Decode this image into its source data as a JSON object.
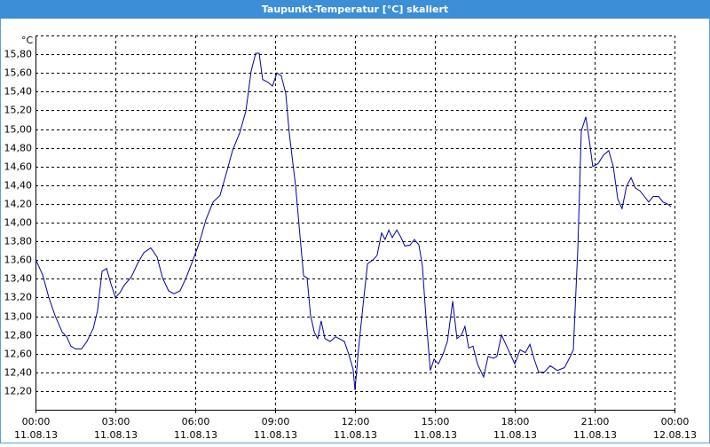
{
  "chart_data": {
    "type": "line",
    "title": "Taupunkt-Temperatur [°C] skaliert",
    "y_label": "°C",
    "color": "#0000a0",
    "grid": true,
    "xlim": [
      0,
      24
    ],
    "ylim": [
      12.0,
      16.0
    ],
    "xticks": [
      {
        "value": 0,
        "label": "00:00",
        "sublabel": "11.08.13"
      },
      {
        "value": 3,
        "label": "03:00",
        "sublabel": "11.08.13"
      },
      {
        "value": 6,
        "label": "06:00",
        "sublabel": "11.08.13"
      },
      {
        "value": 9,
        "label": "09:00",
        "sublabel": "11.08.13"
      },
      {
        "value": 12,
        "label": "12:00",
        "sublabel": "11.08.13"
      },
      {
        "value": 15,
        "label": "15:00",
        "sublabel": "11.08.13"
      },
      {
        "value": 18,
        "label": "18:00",
        "sublabel": "11.08.13"
      },
      {
        "value": 21,
        "label": "21:00",
        "sublabel": "11.08.13"
      },
      {
        "value": 24,
        "label": "00:00",
        "sublabel": "12.08.13"
      }
    ],
    "yticks": [
      {
        "value": 12.2,
        "label": "12,20"
      },
      {
        "value": 12.4,
        "label": "12,40"
      },
      {
        "value": 12.6,
        "label": "12,60"
      },
      {
        "value": 12.8,
        "label": "12,80"
      },
      {
        "value": 13.0,
        "label": "13,00"
      },
      {
        "value": 13.2,
        "label": "13,20"
      },
      {
        "value": 13.4,
        "label": "13,40"
      },
      {
        "value": 13.6,
        "label": "13,60"
      },
      {
        "value": 13.8,
        "label": "13,80"
      },
      {
        "value": 14.0,
        "label": "14,00"
      },
      {
        "value": 14.2,
        "label": "14,20"
      },
      {
        "value": 14.4,
        "label": "14,40"
      },
      {
        "value": 14.6,
        "label": "14,60"
      },
      {
        "value": 14.8,
        "label": "14,80"
      },
      {
        "value": 15.0,
        "label": "15,00"
      },
      {
        "value": 15.2,
        "label": "15,20"
      },
      {
        "value": 15.4,
        "label": "15,40"
      },
      {
        "value": 15.6,
        "label": "15,60"
      },
      {
        "value": 15.8,
        "label": "15,80"
      }
    ],
    "x": [
      0,
      0.27,
      0.5,
      0.73,
      1,
      1.17,
      1.33,
      1.5,
      1.73,
      1.93,
      2.17,
      2.33,
      2.5,
      2.67,
      2.83,
      3,
      3.17,
      3.33,
      3.6,
      3.83,
      4.07,
      4.33,
      4.57,
      4.77,
      5,
      5.2,
      5.43,
      5.67,
      5.93,
      6.17,
      6.4,
      6.67,
      6.93,
      7.17,
      7.4,
      7.67,
      7.9,
      8.1,
      8.27,
      8.4,
      8.53,
      8.73,
      8.9,
      9.07,
      9.23,
      9.4,
      9.53,
      9.77,
      9.93,
      10.07,
      10.2,
      10.33,
      10.47,
      10.6,
      10.73,
      10.87,
      11.07,
      11.27,
      11.6,
      11.77,
      11.93,
      12,
      12.13,
      12.3,
      12.47,
      12.67,
      12.83,
      13,
      13.13,
      13.27,
      13.4,
      13.57,
      13.73,
      13.87,
      14.07,
      14.23,
      14.4,
      14.53,
      14.67,
      14.83,
      14.97,
      15.13,
      15.3,
      15.47,
      15.67,
      15.83,
      16,
      16.13,
      16.27,
      16.43,
      16.6,
      16.83,
      17,
      17.2,
      17.33,
      17.5,
      17.73,
      18,
      18.2,
      18.4,
      18.57,
      18.73,
      18.9,
      19.1,
      19.33,
      19.6,
      19.87,
      20.07,
      20.2,
      20.37,
      20.5,
      20.67,
      20.8,
      20.93,
      21.13,
      21.33,
      21.53,
      21.7,
      21.87,
      22.03,
      22.2,
      22.37,
      22.53,
      22.7,
      22.87,
      23.03,
      23.2,
      23.4,
      23.57,
      23.73,
      23.87
    ],
    "values": [
      13.61,
      13.44,
      13.2,
      13.01,
      12.83,
      12.78,
      12.68,
      12.65,
      12.65,
      12.73,
      12.87,
      13.06,
      13.48,
      13.51,
      13.35,
      13.2,
      13.25,
      13.33,
      13.42,
      13.56,
      13.68,
      13.73,
      13.63,
      13.41,
      13.27,
      13.24,
      13.27,
      13.42,
      13.61,
      13.8,
      14.03,
      14.22,
      14.29,
      14.53,
      14.77,
      14.96,
      15.19,
      15.62,
      15.81,
      15.81,
      15.53,
      15.5,
      15.46,
      15.6,
      15.57,
      15.38,
      14.96,
      14.39,
      13.87,
      13.43,
      13.41,
      13.01,
      12.83,
      12.76,
      12.95,
      12.76,
      12.73,
      12.78,
      12.73,
      12.59,
      12.43,
      12.21,
      12.64,
      13.11,
      13.56,
      13.6,
      13.65,
      13.89,
      13.82,
      13.92,
      13.84,
      13.92,
      13.84,
      13.75,
      13.76,
      13.82,
      13.76,
      13.54,
      12.97,
      12.42,
      12.54,
      12.49,
      12.59,
      12.73,
      13.16,
      12.76,
      12.8,
      12.89,
      12.66,
      12.68,
      12.49,
      12.35,
      12.57,
      12.55,
      12.57,
      12.8,
      12.66,
      12.49,
      12.64,
      12.61,
      12.7,
      12.54,
      12.4,
      12.4,
      12.47,
      12.42,
      12.45,
      12.56,
      12.64,
      13.73,
      14.98,
      15.13,
      14.88,
      14.6,
      14.63,
      14.72,
      14.77,
      14.6,
      14.25,
      14.15,
      14.39,
      14.48,
      14.37,
      14.34,
      14.28,
      14.22,
      14.28,
      14.28,
      14.22,
      14.2,
      14.17
    ]
  }
}
